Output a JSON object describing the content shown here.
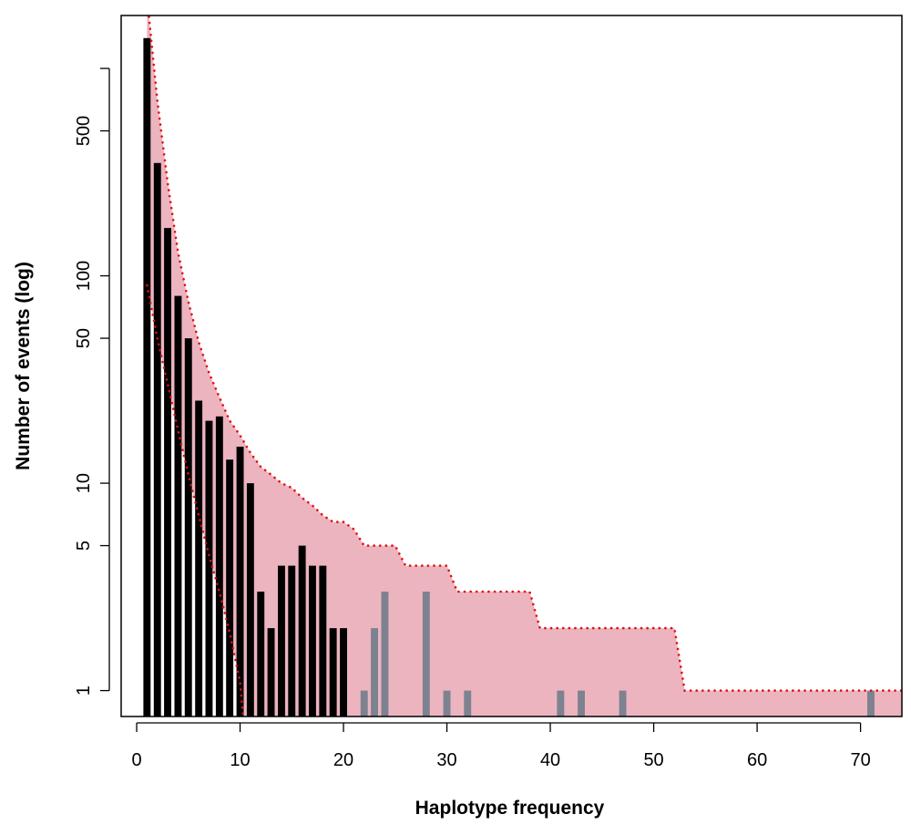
{
  "chart_data": {
    "type": "bar",
    "title": "",
    "xlabel": "Haplotype frequency",
    "ylabel": "Number of events (log)",
    "y_scale": "log",
    "xlim": [
      -1.5,
      74
    ],
    "ylim": [
      0.75,
      1800
    ],
    "x_ticks": [
      0,
      10,
      20,
      30,
      40,
      50,
      60,
      70
    ],
    "y_ticks": [
      1,
      5,
      10,
      50,
      100,
      500
    ],
    "y_minor_ticks": [
      1000
    ],
    "grid": false,
    "legend": "none",
    "colors": {
      "band_fill": "#ecb4bf",
      "band_edge": "#e01010",
      "observed_bar": "#000000",
      "outside_bar": "#7d8290"
    },
    "series": [
      {
        "style": "observed",
        "x": [
          1,
          2,
          3,
          4,
          5,
          6,
          7,
          8,
          9,
          10,
          11,
          12,
          13,
          14,
          15,
          16,
          17,
          18,
          19,
          20
        ],
        "values": [
          1400,
          350,
          170,
          80,
          50,
          25,
          20,
          21,
          13,
          15,
          10,
          3,
          2,
          4,
          4,
          5,
          4,
          4,
          2,
          2
        ]
      },
      {
        "style": "outside",
        "x": [
          22,
          23,
          24,
          28,
          30,
          32,
          41,
          43,
          47,
          71
        ],
        "values": [
          1,
          2,
          3,
          3,
          1,
          1,
          1,
          1,
          1,
          1
        ]
      }
    ],
    "band_upper": {
      "x": [
        1,
        2,
        3,
        4,
        5,
        6,
        7,
        8,
        9,
        10,
        11,
        12,
        13,
        14,
        15,
        16,
        17,
        18,
        19,
        20,
        21,
        22,
        23,
        24,
        25,
        26,
        27,
        28,
        29,
        30,
        31,
        32,
        33,
        34,
        35,
        36,
        37,
        38,
        39,
        40,
        41,
        42,
        43,
        44,
        45,
        46,
        47,
        48,
        49,
        50,
        51,
        52,
        53,
        54,
        55,
        56,
        57,
        58,
        59,
        60,
        61,
        62,
        63,
        64,
        65,
        66,
        67,
        68,
        69,
        70,
        71,
        72,
        73,
        74
      ],
      "values": [
        2200,
        700,
        280,
        130,
        75,
        48,
        34,
        26,
        20,
        17,
        14,
        12,
        11,
        10,
        9.5,
        8.5,
        7.8,
        7,
        6.5,
        6.5,
        6,
        5,
        5,
        5,
        5,
        4,
        4,
        4,
        4,
        4,
        3,
        3,
        3,
        3,
        3,
        3,
        3,
        3,
        2,
        2,
        2,
        2,
        2,
        2,
        2,
        2,
        2,
        2,
        2,
        2,
        2,
        2,
        1,
        1,
        1,
        1,
        1,
        1,
        1,
        1,
        1,
        1,
        1,
        1,
        1,
        1,
        1,
        1,
        1,
        1,
        1,
        1,
        1,
        1
      ]
    },
    "band_lower": {
      "x": [
        1,
        2,
        3,
        4,
        5,
        6,
        7,
        8,
        9,
        10,
        10.3
      ],
      "values": [
        90,
        50,
        30,
        18,
        11,
        7,
        4.5,
        3,
        1.9,
        1.1,
        0.75
      ]
    }
  }
}
